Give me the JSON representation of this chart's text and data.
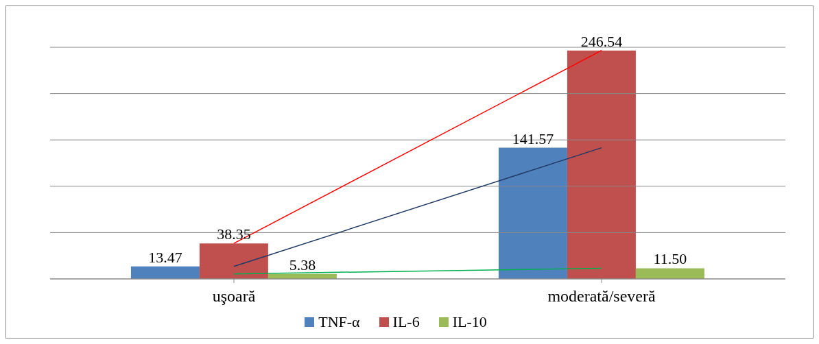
{
  "chart_data": {
    "type": "bar",
    "categories": [
      "uşoară",
      "moderată/severă"
    ],
    "series": [
      {
        "name": "TNF-α",
        "color": "#4f81bd",
        "values": [
          13.47,
          141.57
        ],
        "value_labels": [
          "13.47",
          "141.57"
        ]
      },
      {
        "name": "IL-6",
        "color": "#c0504d",
        "values": [
          38.35,
          246.54
        ],
        "value_labels": [
          "38.35",
          "246.54"
        ]
      },
      {
        "name": "IL-10",
        "color": "#9bbb59",
        "values": [
          5.38,
          11.5
        ],
        "value_labels": [
          "5.38",
          "11.50"
        ]
      },
      {
        "type": "line",
        "color": "#ff0000",
        "values": [
          38.35,
          246.54
        ],
        "marker": "none",
        "line_style": "solid"
      },
      {
        "type": "line",
        "color": "#1f3864",
        "values": [
          13.47,
          141.57
        ],
        "marker": "none",
        "line_style": "solid"
      },
      {
        "type": "line",
        "color": "#00b050",
        "values": [
          5.38,
          11.5
        ],
        "marker": "none",
        "line_style": "solid"
      }
    ],
    "ylim": [
      0,
      250
    ],
    "yticks": [
      {
        "value": 0,
        "label": null
      },
      {
        "value": 50,
        "label": null
      },
      {
        "value": 100,
        "label": null
      },
      {
        "value": 150,
        "label": null
      },
      {
        "value": 200,
        "label": null
      },
      {
        "value": 250,
        "label": null
      }
    ],
    "tick_labels": "x",
    "grid": "y",
    "legend": "bottom"
  }
}
